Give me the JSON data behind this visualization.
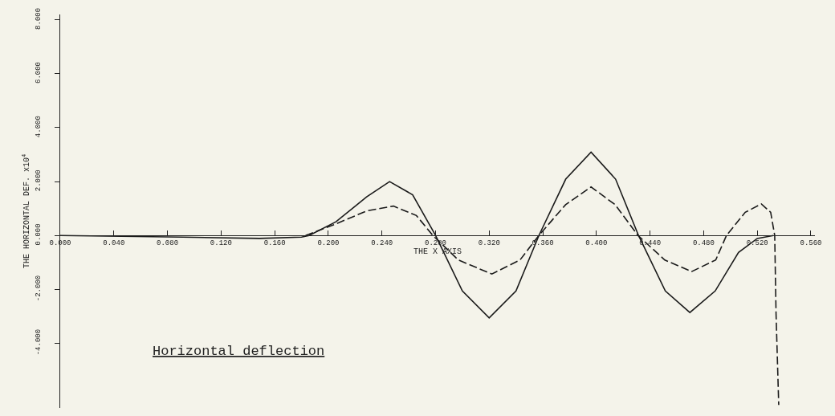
{
  "chart_data": {
    "type": "line",
    "xlabel": "THE X AXIS",
    "ylabel": "THE HORIZONTAL DEF. x10$^{4}$",
    "annotations": [
      "Horizontal deflection"
    ],
    "xlim": [
      0,
      0.563
    ],
    "ylim": [
      -6.4,
      8.2
    ],
    "xticks": [
      {
        "value": 0,
        "label": "0.000"
      },
      {
        "value": 0.04,
        "label": "0.040"
      },
      {
        "value": 0.08,
        "label": "0.080"
      },
      {
        "value": 0.12,
        "label": "0.120"
      },
      {
        "value": 0.16,
        "label": "0.160"
      },
      {
        "value": 0.2,
        "label": "0.200"
      },
      {
        "value": 0.24,
        "label": "0.240"
      },
      {
        "value": 0.28,
        "label": "0.280"
      },
      {
        "value": 0.32,
        "label": "0.320"
      },
      {
        "value": 0.36,
        "label": "0.360"
      },
      {
        "value": 0.4,
        "label": "0.400"
      },
      {
        "value": 0.44,
        "label": "0.440"
      },
      {
        "value": 0.48,
        "label": "0.480"
      },
      {
        "value": 0.52,
        "label": "0.520"
      },
      {
        "value": 0.56,
        "label": "0.560"
      }
    ],
    "yticks": [
      {
        "value": -4,
        "label": "-4.000"
      },
      {
        "value": -2,
        "label": "-2.000"
      },
      {
        "value": 0,
        "label": "0.000"
      },
      {
        "value": 2,
        "label": "2.000"
      },
      {
        "value": 4,
        "label": "4.000"
      },
      {
        "value": 6,
        "label": "6.000"
      },
      {
        "value": 8,
        "label": "8.000"
      }
    ],
    "series": [
      {
        "color": "#1a1a1a",
        "line_style": "solid",
        "x": [
          0,
          0.0914,
          0.1486,
          0.18,
          0.1857,
          0.2057,
          0.2286,
          0.2457,
          0.2629,
          0.28,
          0.3,
          0.32,
          0.34,
          0.3571,
          0.3771,
          0.396,
          0.4143,
          0.4314,
          0.4514,
          0.4697,
          0.4886,
          0.506,
          0.52,
          0.532
        ],
        "values": [
          0,
          -0.06,
          -0.11,
          -0.06,
          0,
          0.51,
          1.43,
          2.0,
          1.51,
          0,
          -2.06,
          -3.06,
          -2.06,
          0,
          2.09,
          3.09,
          2.09,
          0,
          -2.06,
          -2.86,
          -2.06,
          -0.63,
          -0.11,
          0
        ]
      },
      {
        "color": "#1a1a1a",
        "line_style": "dashed",
        "x": [
          0.183,
          0.2057,
          0.2286,
          0.2486,
          0.2657,
          0.278,
          0.297,
          0.322,
          0.343,
          0.357,
          0.377,
          0.396,
          0.414,
          0.431,
          0.451,
          0.471,
          0.489,
          0.497,
          0.511,
          0.523,
          0.53,
          0.533,
          0.534,
          0.536
        ],
        "values": [
          0,
          0.43,
          0.91,
          1.09,
          0.74,
          0,
          -0.91,
          -1.43,
          -0.91,
          0,
          1.14,
          1.8,
          1.14,
          0,
          -0.91,
          -1.34,
          -0.91,
          0,
          0.86,
          1.17,
          0.86,
          0,
          -2.91,
          -6.29
        ]
      }
    ]
  }
}
